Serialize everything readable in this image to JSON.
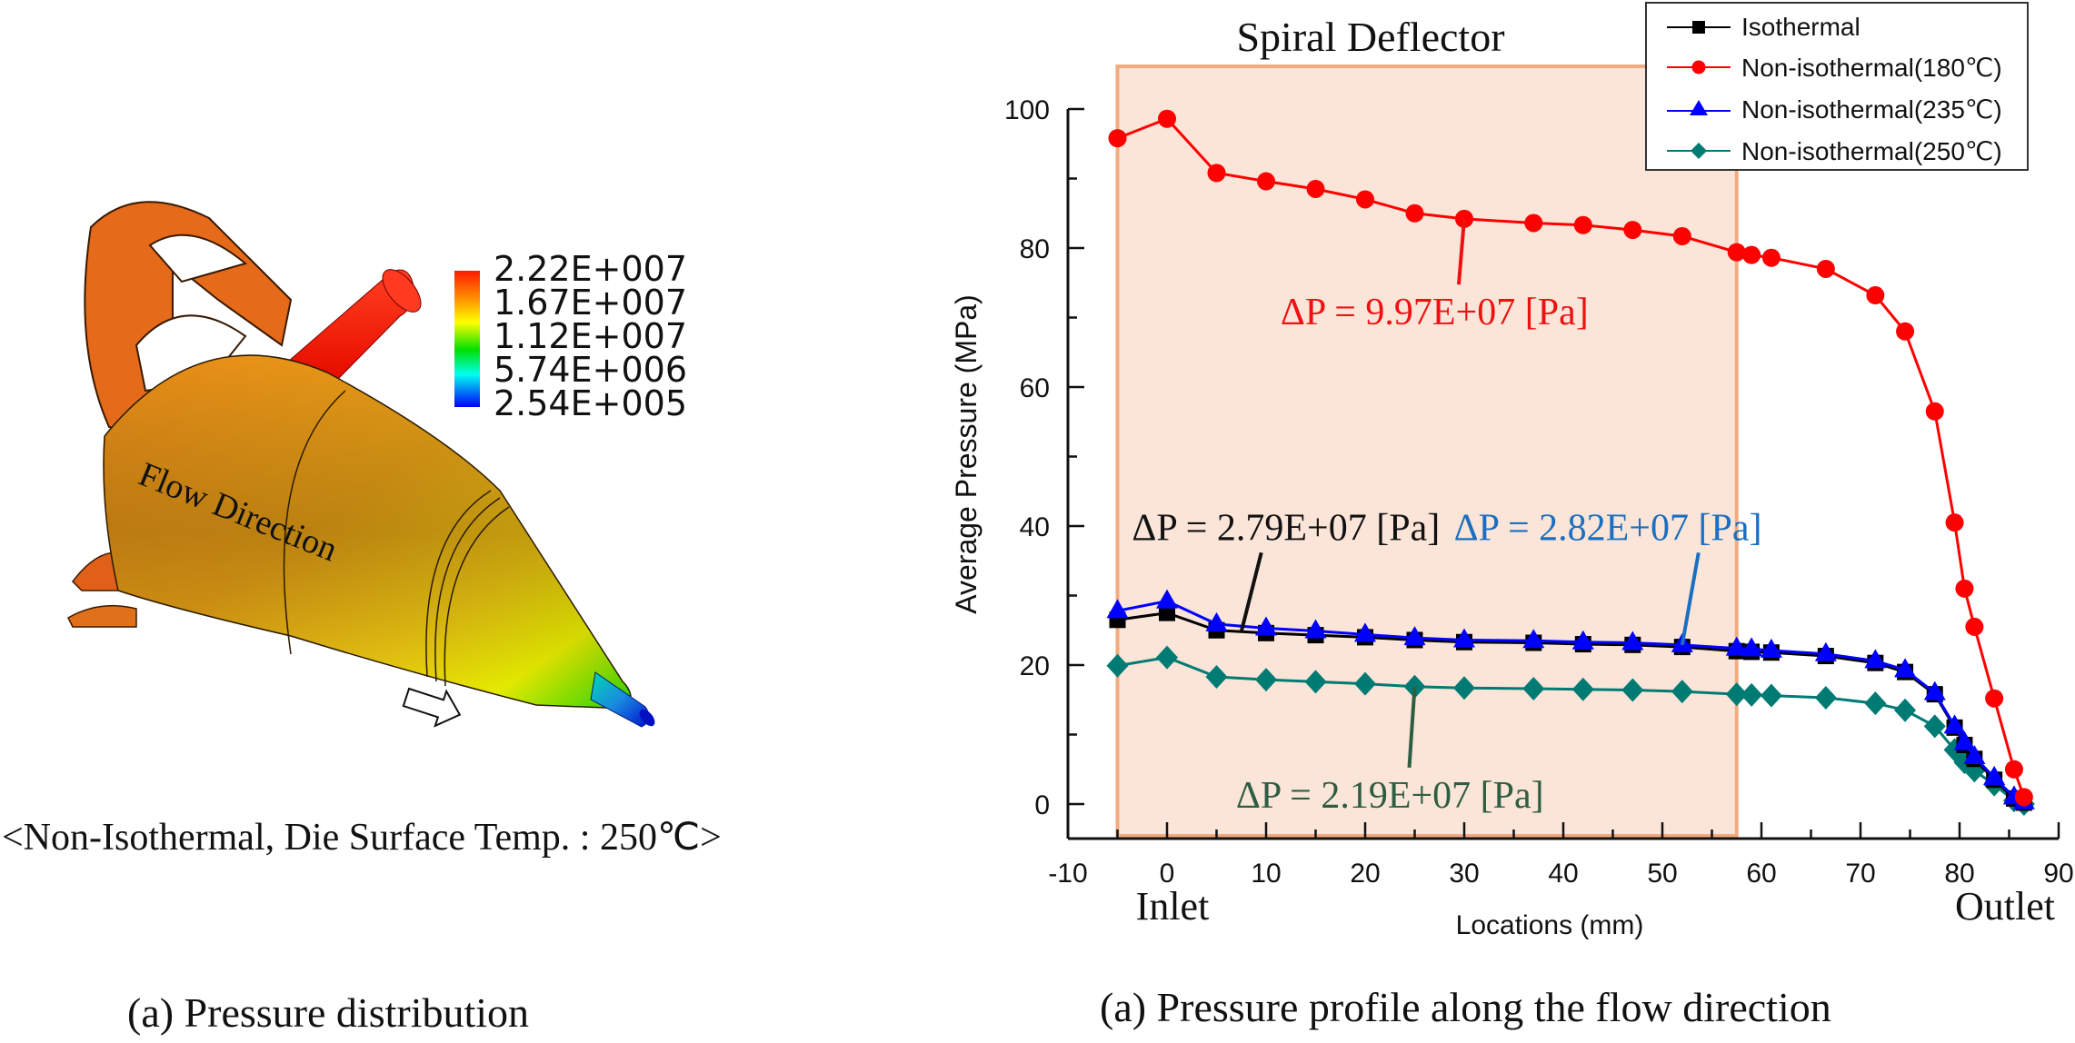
{
  "left_panel": {
    "colorbar": {
      "labels": [
        "2.22E+007",
        "1.67E+007",
        "1.12E+007",
        "5.74E+006",
        "2.54E+005"
      ],
      "colors": [
        "#ff1a00",
        "#ffa000",
        "#ffff00",
        "#00e000",
        "#00ffff",
        "#0000ff"
      ]
    },
    "flow_label": "Flow Direction",
    "condition_caption": "<Non-Isothermal, Die Surface Temp. : 250℃>",
    "panel_caption": "(a) Pressure distribution"
  },
  "right_panel": {
    "panel_caption": "(a) Pressure profile along the flow direction",
    "inlet_label": "Inlet",
    "outlet_label": "Outlet",
    "region_label": "Spiral Deflector",
    "region_color": "#fbe5d8",
    "region_edge_color": "#f2ab80"
  },
  "chart_data": {
    "type": "line",
    "title": "",
    "xlabel": "Locations (mm)",
    "ylabel": "Average Pressure (MPa)",
    "xlim": [
      -10,
      90
    ],
    "ylim": [
      -5,
      100
    ],
    "xticks": [
      -10,
      0,
      10,
      20,
      30,
      40,
      50,
      60,
      70,
      80,
      90
    ],
    "yticks": [
      0,
      20,
      40,
      60,
      80,
      100
    ],
    "grid": false,
    "legend_position": "top-right",
    "shaded_region": {
      "label": "Spiral Deflector",
      "x_range": [
        -5,
        57.5
      ]
    },
    "x": [
      -5,
      0,
      5,
      10,
      15,
      20,
      25,
      30,
      37,
      42,
      47,
      52,
      57.5,
      59,
      61,
      66.5,
      71.5,
      74.5,
      77.5,
      79.5,
      80.5,
      81.5,
      83.5,
      85.5,
      86.5
    ],
    "series": [
      {
        "name": "Isothermal",
        "color": "#000000",
        "marker": "square",
        "values": [
          26.5,
          27.5,
          25.0,
          24.6,
          24.3,
          24.0,
          23.6,
          23.3,
          23.2,
          23.0,
          22.9,
          22.6,
          22.0,
          21.9,
          21.8,
          21.3,
          20.3,
          19.0,
          15.8,
          11.0,
          8.5,
          6.5,
          3.5,
          0.8,
          0.2
        ]
      },
      {
        "name": "Non-isothermal(180℃)",
        "color": "#ff0000",
        "marker": "circle",
        "values": [
          95.8,
          98.6,
          90.8,
          89.6,
          88.5,
          87.0,
          85.0,
          84.2,
          83.6,
          83.3,
          82.6,
          81.7,
          79.4,
          79.0,
          78.6,
          77.0,
          73.2,
          68.0,
          56.5,
          40.5,
          31.0,
          25.5,
          15.2,
          5.0,
          1.0
        ]
      },
      {
        "name": "Non-isothermal(235℃)",
        "color": "#0000ff",
        "marker": "triangle",
        "values": [
          27.8,
          29.2,
          25.9,
          25.3,
          24.9,
          24.4,
          23.9,
          23.6,
          23.5,
          23.3,
          23.2,
          22.9,
          22.4,
          22.3,
          22.1,
          21.6,
          20.6,
          19.3,
          16.0,
          11.2,
          8.8,
          6.8,
          3.8,
          1.0,
          0.3
        ]
      },
      {
        "name": "Non-isothermal(250℃)",
        "color": "#007b74",
        "marker": "diamond",
        "values": [
          19.9,
          21.1,
          18.3,
          17.9,
          17.6,
          17.3,
          16.9,
          16.7,
          16.6,
          16.5,
          16.4,
          16.2,
          15.8,
          15.7,
          15.6,
          15.3,
          14.5,
          13.5,
          11.2,
          7.8,
          6.0,
          4.8,
          2.8,
          0.5,
          0.0
        ]
      }
    ],
    "annotations": [
      {
        "text": "ΔP = 9.97E+07 [Pa]",
        "color": "#ee1111",
        "series": "Non-isothermal(180℃)",
        "point_x": 30,
        "text_x": 27,
        "text_y": 69
      },
      {
        "text": "ΔP = 2.79E+07 [Pa]",
        "color": "#111111",
        "series": "Isothermal",
        "point_x": 7.5,
        "text_x": 12,
        "text_y": 38
      },
      {
        "text": "ΔP = 2.82E+07 [Pa]",
        "color": "#1a6fc0",
        "series": "Non-isothermal(235℃)",
        "point_x": 52,
        "text_x": 44.5,
        "text_y": 38
      },
      {
        "text": "ΔP = 2.19E+07 [Pa]",
        "color": "#2e5e42",
        "series": "Non-isothermal(250℃)",
        "point_x": 25,
        "text_x": 22.5,
        "text_y": -0.5
      }
    ]
  }
}
